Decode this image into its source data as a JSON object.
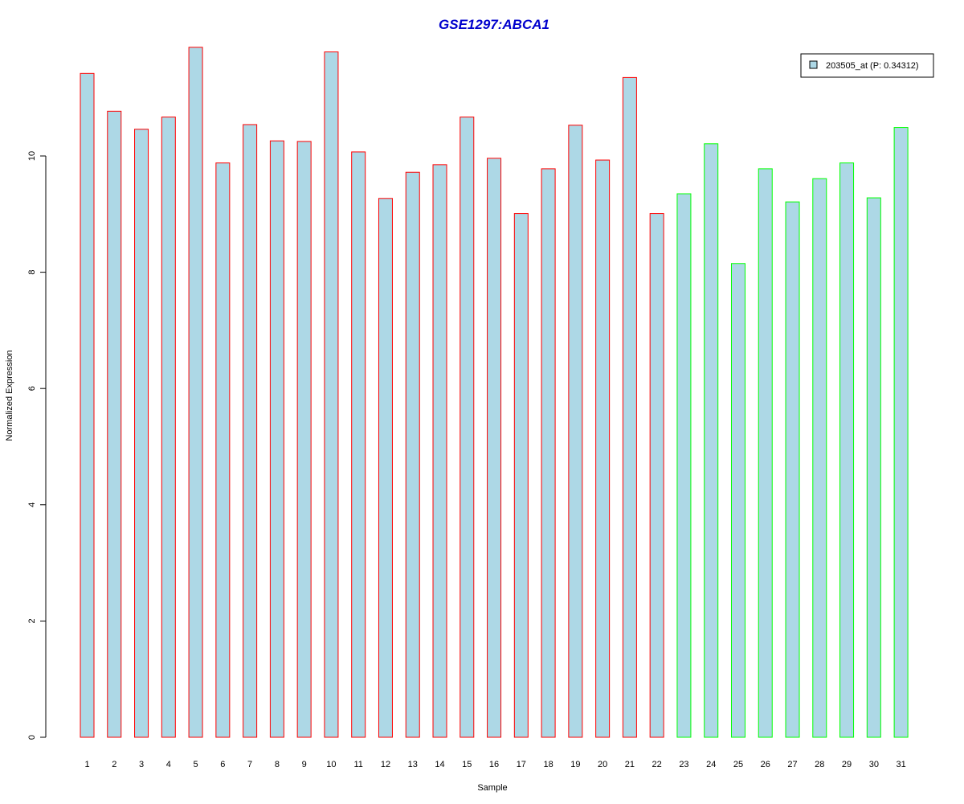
{
  "chart_data": {
    "type": "bar",
    "title": "GSE1297:ABCA1",
    "xlabel": "Sample",
    "ylabel": "Normalized Expression",
    "ylim": [
      0,
      12
    ],
    "yticks": [
      0,
      2,
      4,
      6,
      8,
      10
    ],
    "categories": [
      "1",
      "2",
      "3",
      "4",
      "5",
      "6",
      "7",
      "8",
      "9",
      "10",
      "11",
      "12",
      "13",
      "14",
      "15",
      "16",
      "17",
      "18",
      "19",
      "20",
      "21",
      "22",
      "23",
      "24",
      "25",
      "26",
      "27",
      "28",
      "29",
      "30",
      "31"
    ],
    "values": [
      11.42,
      10.77,
      10.46,
      10.67,
      11.87,
      9.88,
      10.54,
      10.26,
      10.25,
      11.79,
      10.07,
      9.27,
      9.72,
      9.85,
      10.67,
      9.96,
      9.01,
      9.78,
      10.53,
      9.93,
      11.35,
      9.01,
      9.35,
      10.21,
      8.15,
      9.78,
      9.21,
      9.61,
      9.88,
      9.28,
      10.49
    ],
    "groups": [
      "g1",
      "g1",
      "g1",
      "g1",
      "g1",
      "g1",
      "g1",
      "g1",
      "g1",
      "g1",
      "g1",
      "g1",
      "g1",
      "g1",
      "g1",
      "g1",
      "g1",
      "g1",
      "g1",
      "g1",
      "g1",
      "g1",
      "g2",
      "g2",
      "g2",
      "g2",
      "g2",
      "g2",
      "g2",
      "g2",
      "g2"
    ],
    "series": [
      {
        "name": "203505_at (P: 0.34312)"
      }
    ],
    "legend_position": "top-right",
    "grid": false,
    "colors": {
      "bar_fill": "#add8e6",
      "group_border": {
        "g1": "#ff0000",
        "g2": "#00ff00"
      },
      "title": "#0000cd",
      "axis": "#000000"
    }
  }
}
